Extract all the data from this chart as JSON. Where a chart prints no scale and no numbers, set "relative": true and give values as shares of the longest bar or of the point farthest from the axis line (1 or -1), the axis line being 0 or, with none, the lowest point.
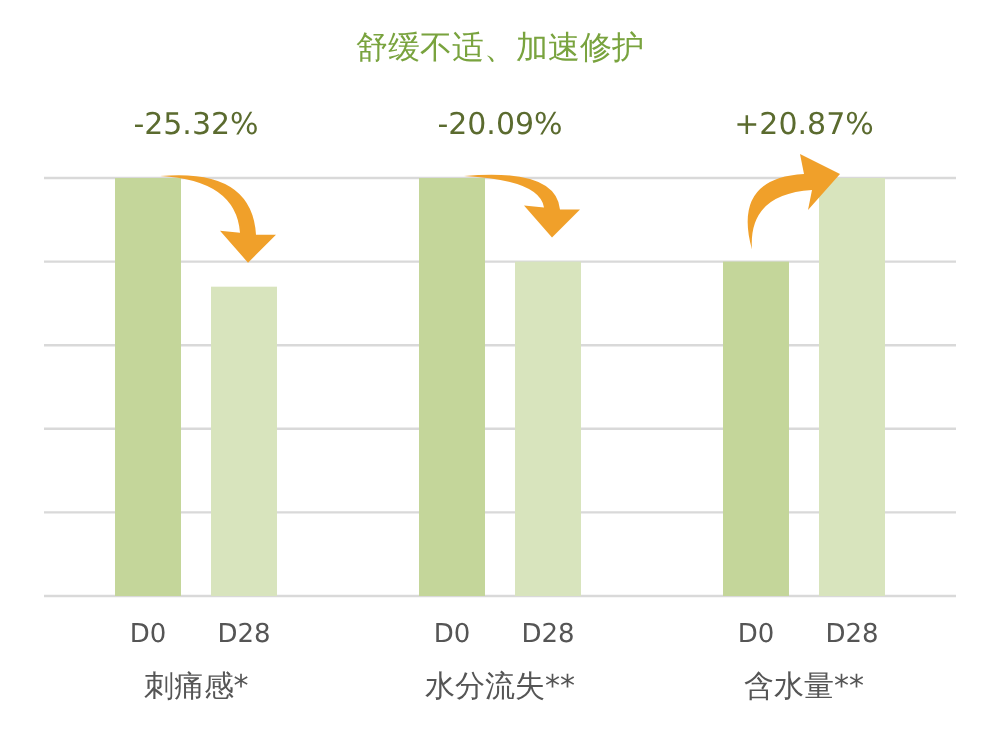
{
  "chart_data": {
    "type": "bar",
    "title": "舒缓不适、加速修护",
    "relative": true,
    "grid": "y",
    "categories": [
      "刺痛感*",
      "水分流失**",
      "含水量**"
    ],
    "series": [
      {
        "name": "D0",
        "color": "#c4d69a",
        "values": [
          1,
          1,
          0.8
        ]
      },
      {
        "name": "D28",
        "color": "#d8e4bd",
        "values": [
          0.74,
          0.8,
          1
        ]
      }
    ],
    "annotations": [
      "-25.32%",
      "-20.09%",
      "+20.87%"
    ]
  }
}
